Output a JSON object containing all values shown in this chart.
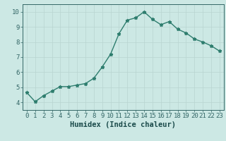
{
  "x": [
    0,
    1,
    2,
    3,
    4,
    5,
    6,
    7,
    8,
    9,
    10,
    11,
    12,
    13,
    14,
    15,
    16,
    17,
    18,
    19,
    20,
    21,
    22,
    23
  ],
  "y": [
    4.65,
    4.05,
    4.45,
    4.75,
    5.05,
    5.05,
    5.15,
    5.25,
    5.6,
    6.35,
    7.2,
    8.55,
    9.45,
    9.6,
    10.0,
    9.5,
    9.15,
    9.35,
    8.85,
    8.6,
    8.2,
    8.0,
    7.75,
    7.4
  ],
  "xlabel": "Humidex (Indice chaleur)",
  "ylim": [
    3.5,
    10.5
  ],
  "xlim": [
    -0.5,
    23.5
  ],
  "yticks": [
    4,
    5,
    6,
    7,
    8,
    9,
    10
  ],
  "xticks": [
    0,
    1,
    2,
    3,
    4,
    5,
    6,
    7,
    8,
    9,
    10,
    11,
    12,
    13,
    14,
    15,
    16,
    17,
    18,
    19,
    20,
    21,
    22,
    23
  ],
  "line_color": "#2e7d6e",
  "marker": "*",
  "marker_size": 3.5,
  "bg_color": "#cce8e4",
  "grid_color": "#b8d4d0",
  "axis_color": "#336666",
  "label_color": "#1a4a4a",
  "xlabel_fontsize": 7.5,
  "tick_fontsize": 6.5,
  "linewidth": 1.0
}
